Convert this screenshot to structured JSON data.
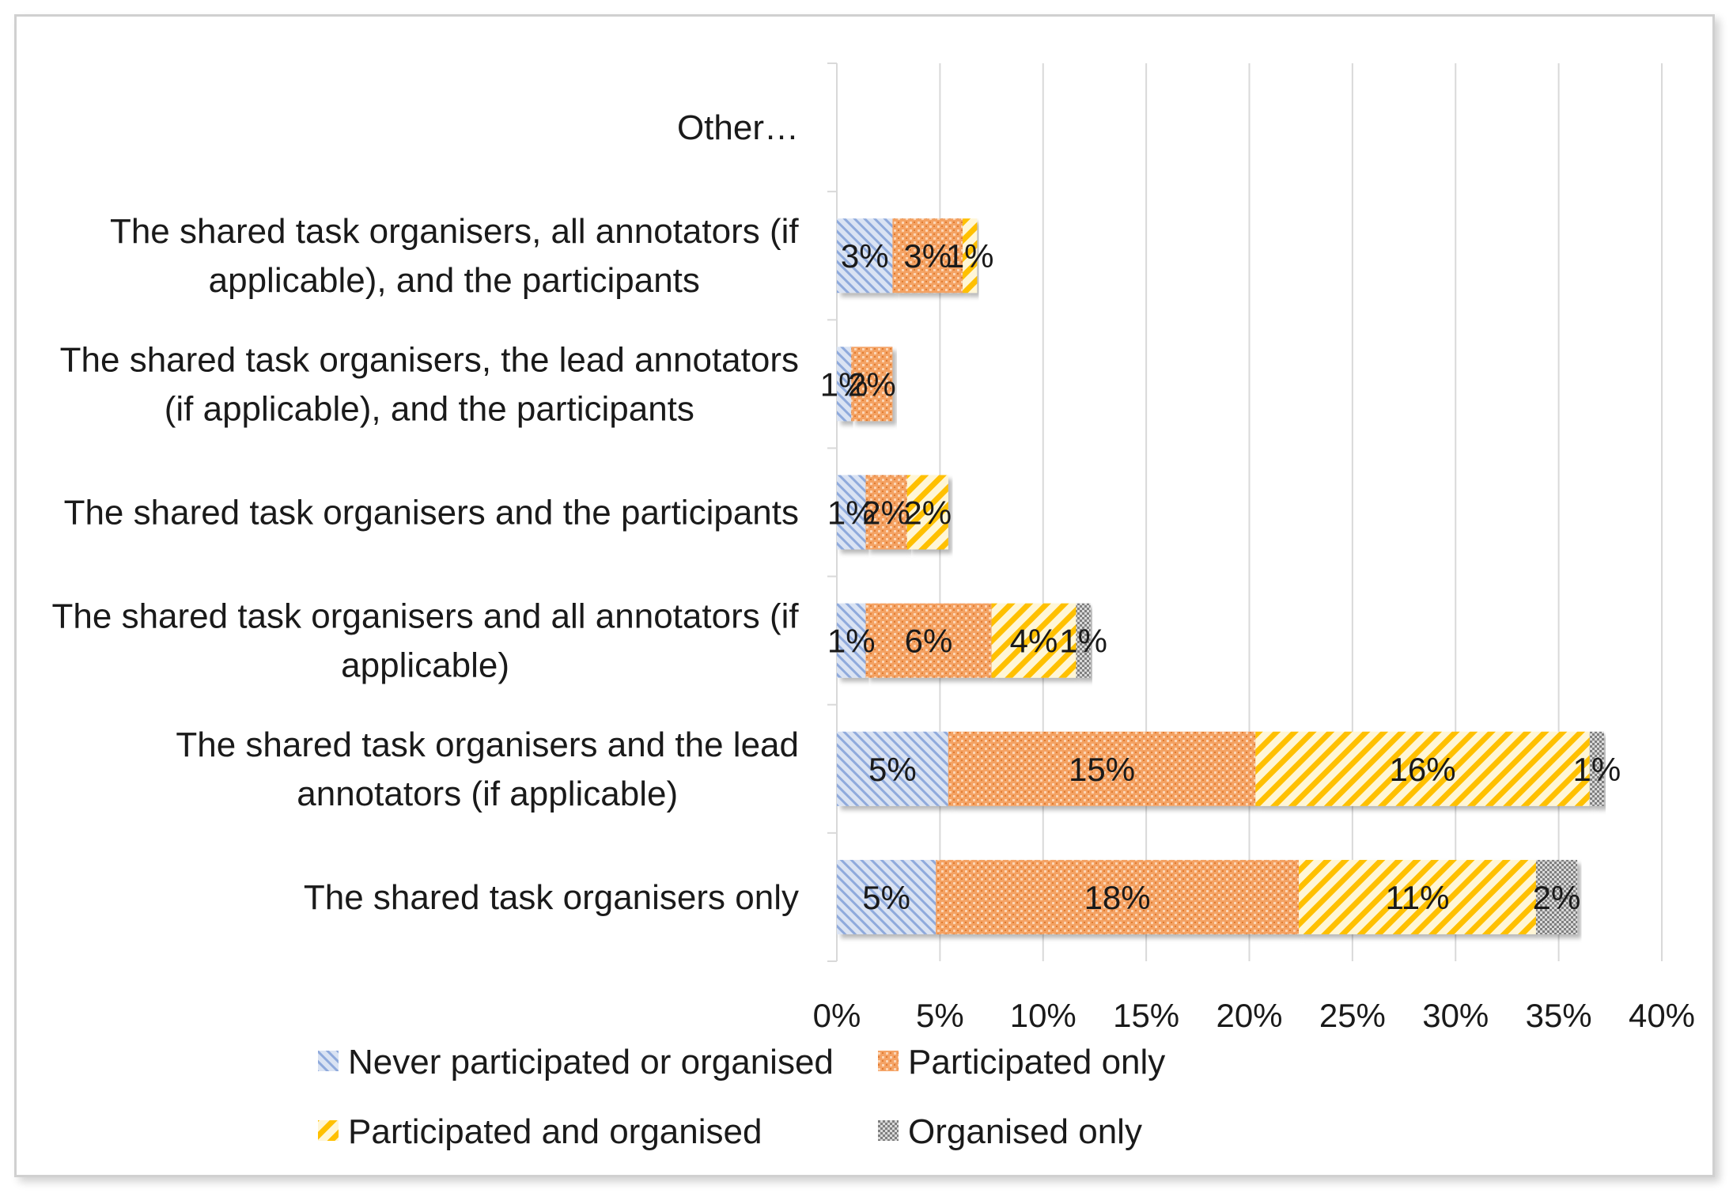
{
  "chart_data": {
    "type": "bar",
    "orientation": "horizontal",
    "stacked": true,
    "title": "",
    "xlabel": "",
    "ylabel": "",
    "xlim": [
      0,
      40
    ],
    "x_ticks": [
      "0%",
      "5%",
      "10%",
      "15%",
      "20%",
      "25%",
      "30%",
      "35%",
      "40%"
    ],
    "x_tick_values": [
      0,
      5,
      10,
      15,
      20,
      25,
      30,
      35,
      40
    ],
    "grid": true,
    "legend_position": "bottom",
    "categories": [
      {
        "lines": [
          "Other…"
        ]
      },
      {
        "lines": [
          "The shared task organisers, all annotators (if",
          "applicable), and the participants"
        ]
      },
      {
        "lines": [
          "The shared task organisers, the lead annotators",
          "(if applicable), and the participants"
        ]
      },
      {
        "lines": [
          "The shared task organisers and the participants"
        ]
      },
      {
        "lines": [
          "The shared task organisers and all annotators (if",
          "applicable)"
        ]
      },
      {
        "lines": [
          "The shared task organisers and the lead",
          "annotators (if applicable)"
        ]
      },
      {
        "lines": [
          "The shared task organisers only"
        ]
      }
    ],
    "series": [
      {
        "name": "Never participated or organised",
        "color": "#b4c7e7",
        "values": [
          0,
          2.7,
          0.7,
          1.4,
          1.4,
          5.4,
          4.8
        ],
        "labels": [
          "",
          "3%",
          "1%",
          "1%",
          "1%",
          "5%",
          "5%"
        ]
      },
      {
        "name": "Participated only",
        "color": "#f4a264",
        "values": [
          0,
          3.4,
          2.0,
          2.0,
          6.1,
          14.9,
          17.6
        ],
        "labels": [
          "",
          "3%",
          "2%",
          "2%",
          "6%",
          "15%",
          "18%"
        ]
      },
      {
        "name": "Participated and organised",
        "color": "#ffd965",
        "values": [
          0,
          0.7,
          0,
          2.0,
          4.1,
          16.2,
          11.5
        ],
        "labels": [
          "",
          "1%",
          "",
          "2%",
          "4%",
          "16%",
          "11%"
        ]
      },
      {
        "name": "Organised only",
        "color": "#b0b0b0",
        "values": [
          0,
          0,
          0,
          0,
          0.7,
          0.7,
          2.0
        ],
        "labels": [
          "",
          "",
          "",
          "",
          "1%",
          "1%",
          "2%"
        ]
      }
    ]
  }
}
